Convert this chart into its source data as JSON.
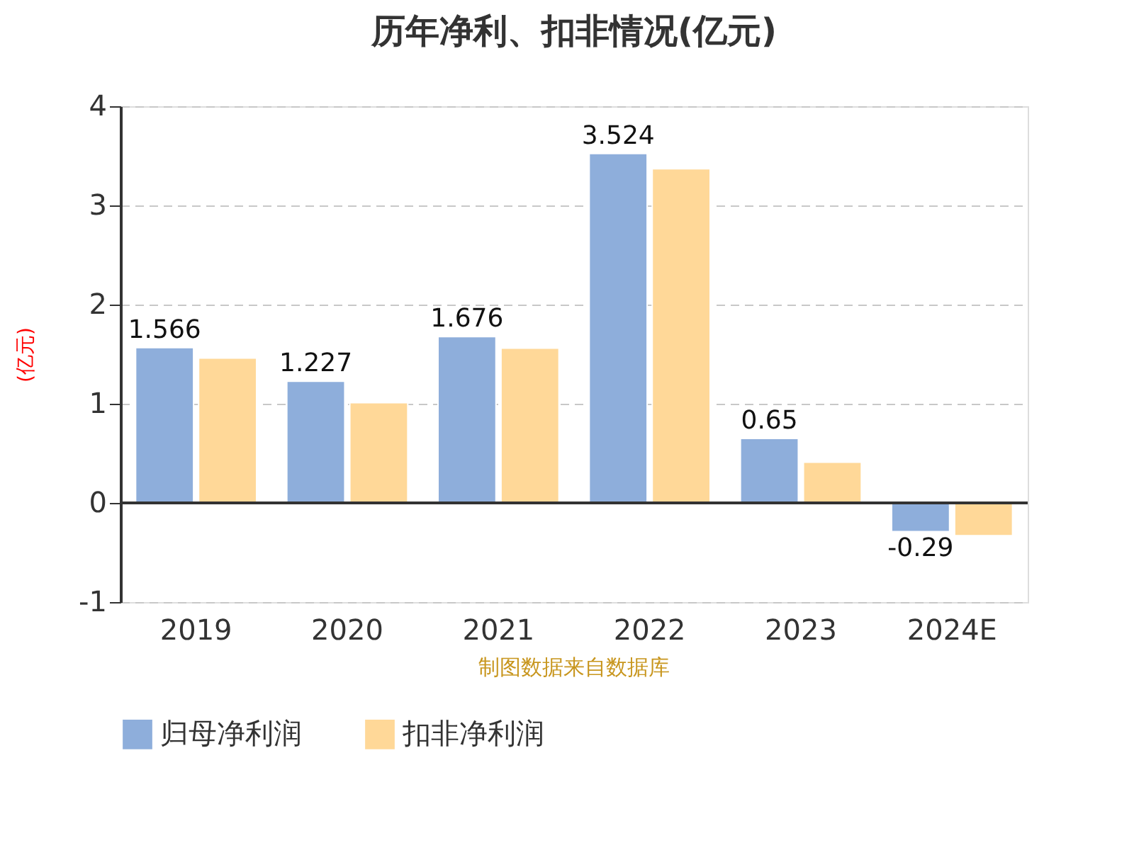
{
  "chart_data": {
    "type": "bar",
    "title": "历年净利、扣非情况(亿元)",
    "ylabel": "(亿元)",
    "categories": [
      "2019",
      "2020",
      "2021",
      "2022",
      "2023",
      "2024E"
    ],
    "series": [
      {
        "name": "归母净利润",
        "color": "#8eaedb",
        "values": [
          1.566,
          1.227,
          1.676,
          3.524,
          0.65,
          -0.29
        ],
        "value_labels": [
          "1.566",
          "1.227",
          "1.676",
          "3.524",
          "0.65",
          "-0.29"
        ]
      },
      {
        "name": "扣非净利润",
        "color": "#ffd898",
        "values": [
          1.46,
          1.01,
          1.56,
          3.37,
          0.41,
          -0.33
        ]
      }
    ],
    "ylim": [
      -1,
      4
    ],
    "yticks": [
      -1,
      0,
      1,
      2,
      3,
      4
    ],
    "grid": "y",
    "legend": "bottom",
    "annotations": [
      "制图数据来自数据库"
    ]
  }
}
